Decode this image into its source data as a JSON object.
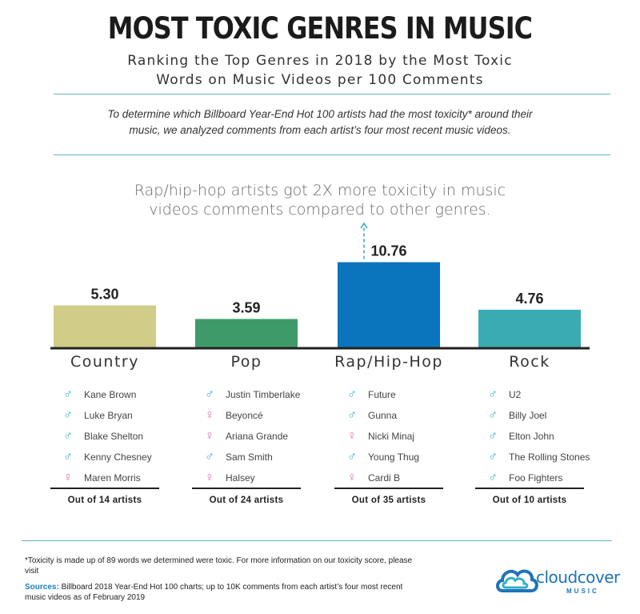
{
  "title": "MOST TOXIC GENRES IN MUSIC",
  "subtitle_line1": "Ranking the Top Genres in 2018 by the Most Toxic",
  "subtitle_line2": "Words on Music Videos per 100 Comments",
  "intro_line1": "To determine which Billboard Year-End Hot 100 artists had the most toxicity* around their",
  "intro_line2": "music, we analyzed comments from each artist’s four most recent music videos.",
  "headline_line1": "Rap/hip-hop artists got 2X more toxicity in music",
  "headline_line2": "videos comments compared to other genres.",
  "colors": {
    "country": "#cfcd87",
    "pop": "#3f9a6a",
    "rap": "#0a74bd",
    "rock": "#3aacb1",
    "accent_line": "#62b4c4",
    "male_icon": "#2fb0c4",
    "female_icon": "#e86db0"
  },
  "chart_data": {
    "type": "bar",
    "categories": [
      "Country",
      "Pop",
      "Rap/Hip-Hop",
      "Rock"
    ],
    "values": [
      5.3,
      3.59,
      10.76,
      4.76
    ],
    "value_labels": [
      "5.30",
      "3.59",
      "10.76",
      "4.76"
    ],
    "title": "",
    "xlabel": "",
    "ylabel": "",
    "ylim": [
      0,
      12
    ],
    "grid": false,
    "legend": "none",
    "annotation": "arrow above Rap/Hip-Hop bar"
  },
  "genres": [
    {
      "name": "Country",
      "count_label": "Out of 14 artists",
      "artists": [
        {
          "name": "Kane Brown",
          "gender": "male"
        },
        {
          "name": "Luke Bryan",
          "gender": "male"
        },
        {
          "name": "Blake Shelton",
          "gender": "male"
        },
        {
          "name": "Kenny Chesney",
          "gender": "male"
        },
        {
          "name": "Maren Morris",
          "gender": "female"
        }
      ]
    },
    {
      "name": "Pop",
      "count_label": "Out of 24 artists",
      "artists": [
        {
          "name": "Justin Timberlake",
          "gender": "male"
        },
        {
          "name": "Beyoncé",
          "gender": "female"
        },
        {
          "name": "Ariana Grande",
          "gender": "female"
        },
        {
          "name": "Sam Smith",
          "gender": "male"
        },
        {
          "name": "Halsey",
          "gender": "female"
        }
      ]
    },
    {
      "name": "Rap/Hip-Hop",
      "count_label": "Out of 35 artists",
      "artists": [
        {
          "name": "Future",
          "gender": "male"
        },
        {
          "name": "Gunna",
          "gender": "male"
        },
        {
          "name": "Nicki Minaj",
          "gender": "female"
        },
        {
          "name": "Young Thug",
          "gender": "male"
        },
        {
          "name": "Cardi B",
          "gender": "female"
        }
      ]
    },
    {
      "name": "Rock",
      "count_label": "Out of 10 artists",
      "artists": [
        {
          "name": "U2",
          "gender": "male"
        },
        {
          "name": "Billy Joel",
          "gender": "male"
        },
        {
          "name": "Elton John",
          "gender": "male"
        },
        {
          "name": "The Rolling Stones",
          "gender": "male"
        },
        {
          "name": "Foo Fighters",
          "gender": "male"
        }
      ]
    }
  ],
  "footnote": "*Toxicity is made up of 89 words we determined were toxic. For more information on our toxicity score, please visit",
  "sources_label": "Sources:",
  "sources_text": "Billboard 2018 Year-End Hot 100 charts; up to 10K comments from each artist’s four most recent music videos as of February 2019",
  "logo": {
    "name": "cloudcover",
    "sub": "MUSIC",
    "icon": "cloud-logo-icon"
  }
}
